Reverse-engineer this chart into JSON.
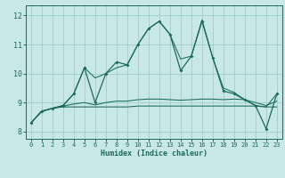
{
  "xlabel": "Humidex (Indice chaleur)",
  "xlim": [
    -0.5,
    23.5
  ],
  "ylim": [
    7.75,
    12.35
  ],
  "xticks": [
    0,
    1,
    2,
    3,
    4,
    5,
    6,
    7,
    8,
    9,
    10,
    11,
    12,
    13,
    14,
    15,
    16,
    17,
    18,
    19,
    20,
    21,
    22,
    23
  ],
  "yticks": [
    8,
    9,
    10,
    11,
    12
  ],
  "bg_color": "#c8e8e5",
  "line_color": "#1a6b5a",
  "grid_color": "#9ecece",
  "hours": [
    0,
    1,
    2,
    3,
    4,
    5,
    6,
    7,
    8,
    9,
    10,
    11,
    12,
    13,
    14,
    15,
    16,
    17,
    18,
    19,
    20,
    21,
    22,
    23
  ],
  "curve_main": [
    8.3,
    8.7,
    8.8,
    8.9,
    9.3,
    10.2,
    9.0,
    10.0,
    10.4,
    10.3,
    11.0,
    11.55,
    11.8,
    11.35,
    10.1,
    10.6,
    11.8,
    10.55,
    9.4,
    9.3,
    9.1,
    8.9,
    8.1,
    9.3
  ],
  "curve_upper": [
    8.3,
    8.7,
    8.8,
    8.9,
    9.3,
    10.2,
    9.85,
    10.0,
    10.2,
    10.3,
    11.0,
    11.55,
    11.8,
    11.35,
    10.5,
    10.6,
    11.85,
    10.55,
    9.5,
    9.35,
    9.1,
    8.9,
    8.85,
    9.3
  ],
  "curve_med": [
    8.3,
    8.7,
    8.8,
    8.88,
    8.95,
    9.0,
    8.92,
    9.0,
    9.05,
    9.05,
    9.1,
    9.12,
    9.12,
    9.1,
    9.08,
    9.1,
    9.12,
    9.12,
    9.1,
    9.12,
    9.1,
    9.0,
    8.9,
    9.05
  ],
  "curve_min": [
    8.3,
    8.7,
    8.8,
    8.85,
    8.85,
    8.85,
    8.85,
    8.85,
    8.85,
    8.85,
    8.88,
    8.88,
    8.88,
    8.88,
    8.88,
    8.88,
    8.88,
    8.88,
    8.88,
    8.88,
    8.88,
    8.88,
    8.85,
    8.85
  ]
}
